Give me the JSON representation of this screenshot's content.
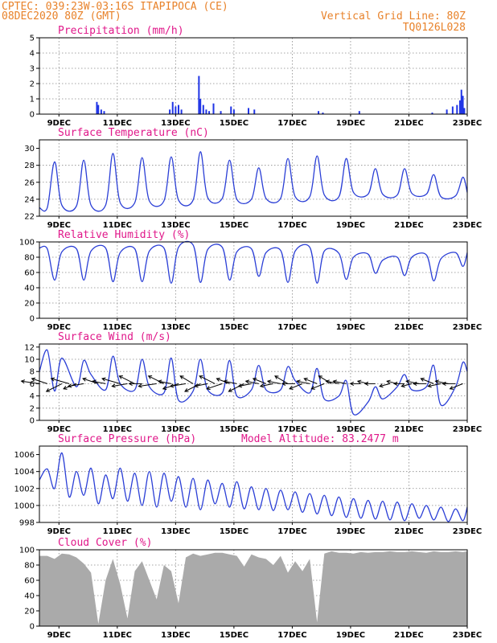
{
  "header": {
    "left_line1": "CPTEC:  039:23W-03:16S  ITAPIPOCA (CE)",
    "left_line2": "08DEC2020 80Z (GMT)",
    "right_line1": "Vertical Grid Line: 80Z",
    "right_line2": "TQ0126L028"
  },
  "x_ticks": [
    "9DEC",
    "11DEC",
    "13DEC",
    "15DEC",
    "17DEC",
    "19DEC",
    "21DEC",
    "23DEC"
  ],
  "colors": {
    "header": "#e8822a",
    "title": "#e0188a",
    "series": "#2b3fd6",
    "bars": "#1f34e6",
    "cloud": "#aaaaaa"
  },
  "panels": [
    {
      "id": "precip",
      "title": "Precipitation (mm/h)",
      "yticks": [
        "5",
        "4",
        "3",
        "2",
        "1",
        "0"
      ]
    },
    {
      "id": "temp",
      "title": "Surface Temperature (nC)",
      "yticks": [
        "30",
        "28",
        "26",
        "24",
        "22"
      ]
    },
    {
      "id": "rh",
      "title": "Relative Humidity (%)",
      "yticks": [
        "100",
        "80",
        "60",
        "40",
        "20",
        "0"
      ]
    },
    {
      "id": "wind",
      "title": "Surface Wind (m/s)",
      "yticks": [
        "12",
        "10",
        "8",
        "6",
        "4",
        "2",
        "0"
      ]
    },
    {
      "id": "pres",
      "title": "Surface Pressure (hPa)",
      "extra": "Model Altitude: 83.2477 m",
      "yticks": [
        "1006",
        "1004",
        "1002",
        "1000",
        "998"
      ]
    },
    {
      "id": "cloud",
      "title": "Cloud Cover (%)",
      "yticks": [
        "100",
        "80",
        "60",
        "40",
        "20",
        "0"
      ]
    }
  ],
  "chart_data": [
    {
      "type": "bar",
      "title": "Precipitation (mm/h)",
      "ylim": [
        0,
        5
      ],
      "xlim_days": [
        8.33,
        23.0
      ],
      "x_days": [
        10.3,
        10.35,
        10.45,
        10.55,
        12.8,
        12.9,
        13.0,
        13.1,
        13.2,
        13.8,
        13.85,
        13.95,
        14.05,
        14.15,
        14.3,
        14.55,
        14.9,
        15.0,
        15.5,
        15.7,
        17.9,
        18.05,
        19.3,
        21.8,
        22.3,
        22.5,
        22.65,
        22.75,
        22.8,
        22.85,
        22.9
      ],
      "values": [
        0.8,
        0.6,
        0.3,
        0.2,
        0.3,
        0.8,
        0.5,
        0.6,
        0.3,
        2.5,
        1.0,
        0.6,
        0.3,
        0.2,
        0.7,
        0.2,
        0.5,
        0.3,
        0.4,
        0.3,
        0.2,
        0.1,
        0.2,
        0.1,
        0.3,
        0.5,
        0.6,
        0.9,
        1.6,
        1.2,
        0.4
      ]
    },
    {
      "type": "line",
      "title": "Surface Temperature (nC)",
      "ylim": [
        22,
        31
      ],
      "x_days": [
        8.33,
        8.6,
        8.85,
        9.1,
        9.6,
        9.85,
        10.1,
        10.6,
        10.85,
        11.1,
        11.6,
        11.85,
        12.1,
        12.6,
        12.85,
        13.1,
        13.6,
        13.85,
        14.1,
        14.6,
        14.85,
        15.1,
        15.6,
        15.85,
        16.1,
        16.6,
        16.85,
        17.1,
        17.6,
        17.85,
        18.1,
        18.6,
        18.85,
        19.1,
        19.6,
        19.85,
        20.1,
        20.6,
        20.85,
        21.1,
        21.6,
        21.85,
        22.1,
        22.6,
        22.85,
        23.0
      ],
      "values": [
        23.0,
        23.0,
        28.4,
        23.3,
        23.2,
        28.6,
        23.3,
        23.3,
        29.4,
        23.6,
        23.6,
        28.9,
        23.8,
        23.8,
        29.0,
        23.9,
        23.9,
        29.6,
        24.2,
        24.1,
        28.6,
        24.0,
        24.0,
        27.7,
        24.1,
        24.1,
        28.8,
        24.3,
        24.3,
        29.1,
        24.5,
        24.3,
        28.8,
        24.8,
        24.6,
        27.6,
        24.6,
        24.5,
        27.6,
        24.7,
        24.6,
        26.9,
        24.3,
        24.4,
        26.6,
        24.8
      ]
    },
    {
      "type": "line",
      "title": "Relative Humidity (%)",
      "ylim": [
        0,
        100
      ],
      "x_days": [
        8.33,
        8.6,
        8.85,
        9.1,
        9.6,
        9.85,
        10.1,
        10.6,
        10.85,
        11.1,
        11.6,
        11.85,
        12.1,
        12.6,
        12.85,
        13.1,
        13.6,
        13.85,
        14.1,
        14.6,
        14.85,
        15.1,
        15.6,
        15.85,
        16.1,
        16.6,
        16.85,
        17.1,
        17.6,
        17.85,
        18.1,
        18.6,
        18.85,
        19.1,
        19.6,
        19.85,
        20.1,
        20.6,
        20.85,
        21.1,
        21.6,
        21.85,
        22.1,
        22.6,
        22.85,
        23.0
      ],
      "values": [
        92,
        91,
        50,
        87,
        91,
        50,
        88,
        92,
        48,
        86,
        91,
        48,
        88,
        92,
        46,
        93,
        96,
        47,
        90,
        93,
        50,
        87,
        91,
        55,
        86,
        89,
        47,
        88,
        93,
        46,
        88,
        85,
        51,
        80,
        84,
        59,
        76,
        80,
        56,
        80,
        83,
        49,
        78,
        86,
        68,
        86
      ]
    },
    {
      "type": "line",
      "title": "Surface Wind (m/s)",
      "ylim": [
        0,
        12.5
      ],
      "x_days": [
        8.33,
        8.6,
        8.85,
        9.1,
        9.6,
        9.85,
        10.1,
        10.6,
        10.85,
        11.1,
        11.6,
        11.85,
        12.1,
        12.6,
        12.85,
        13.1,
        13.6,
        13.85,
        14.1,
        14.6,
        14.85,
        15.1,
        15.6,
        15.85,
        16.1,
        16.6,
        16.85,
        17.1,
        17.6,
        17.85,
        18.1,
        18.6,
        18.85,
        19.1,
        19.6,
        19.85,
        20.1,
        20.6,
        20.85,
        21.1,
        21.6,
        21.85,
        22.1,
        22.6,
        22.85,
        23.0
      ],
      "values": [
        8.0,
        11.5,
        4.8,
        10.2,
        5.5,
        9.8,
        7.5,
        5.0,
        10.5,
        6.0,
        5.0,
        10.0,
        5.5,
        4.5,
        10.2,
        3.3,
        4.8,
        10.0,
        5.0,
        4.5,
        9.8,
        4.0,
        5.0,
        9.0,
        5.0,
        5.0,
        8.8,
        6.5,
        4.5,
        8.5,
        3.5,
        4.0,
        6.5,
        1.0,
        3.0,
        5.5,
        3.5,
        5.5,
        7.5,
        5.0,
        5.5,
        9.0,
        2.5,
        5.5,
        9.5,
        8.0
      ],
      "vectors_x_days": [
        8.33,
        8.6,
        9.1,
        9.35,
        9.6,
        9.85,
        10.35,
        10.6,
        11.1,
        11.35,
        11.6,
        11.85,
        12.35,
        12.6,
        12.85,
        13.1,
        13.35,
        13.6,
        13.85,
        14.1,
        14.35,
        14.6,
        14.85,
        15.1,
        15.35,
        15.6,
        15.85,
        16.1,
        16.35,
        16.6,
        16.85,
        17.1,
        17.35,
        17.6,
        17.85,
        18.1,
        18.35,
        18.6,
        18.85,
        19.35,
        19.6,
        19.85,
        20.35,
        20.6,
        20.85,
        21.1,
        21.35,
        21.6,
        21.85,
        22.1,
        22.35,
        22.6,
        22.85
      ],
      "vectors_u": [
        -7,
        -6,
        -6,
        -7,
        -5,
        -6,
        -6,
        -5,
        -7,
        -6,
        -6,
        -5,
        -7,
        -6,
        -5,
        -6,
        -6,
        -5,
        -6,
        -5,
        -6,
        -6,
        -5,
        -5,
        -6,
        -5,
        -5,
        -5,
        -5,
        -5,
        -5,
        -5,
        -5,
        -5,
        -5,
        -5,
        -5,
        -5,
        -5,
        -4,
        -4,
        -4,
        -4,
        -4,
        -4,
        -4,
        -5,
        -5,
        -5,
        -5,
        -5,
        -5,
        -5
      ],
      "vectors_v": [
        1,
        2,
        -3,
        2,
        -2,
        -1,
        2,
        1,
        2,
        -1,
        3,
        0,
        -1,
        3,
        1,
        -2,
        -1,
        3,
        -3,
        -1,
        3,
        -2,
        2,
        1,
        -3,
        -1,
        1,
        2,
        -1,
        1,
        3,
        0,
        -2,
        1,
        2,
        -2,
        3,
        1,
        1,
        0,
        1,
        0,
        -1,
        1,
        0,
        -1,
        1,
        0,
        2,
        -1,
        1,
        0,
        -2
      ]
    },
    {
      "type": "line",
      "title": "Surface Pressure (hPa)",
      "ylim": [
        998,
        1007
      ],
      "x_days": [
        8.33,
        8.6,
        8.85,
        9.1,
        9.35,
        9.6,
        9.85,
        10.1,
        10.35,
        10.6,
        10.85,
        11.1,
        11.35,
        11.6,
        11.85,
        12.1,
        12.35,
        12.6,
        12.85,
        13.1,
        13.35,
        13.6,
        13.85,
        14.1,
        14.35,
        14.6,
        14.85,
        15.1,
        15.35,
        15.6,
        15.85,
        16.1,
        16.35,
        16.6,
        16.85,
        17.1,
        17.35,
        17.6,
        17.85,
        18.1,
        18.35,
        18.6,
        18.85,
        19.1,
        19.35,
        19.6,
        19.85,
        20.1,
        20.35,
        20.6,
        20.85,
        21.1,
        21.35,
        21.6,
        21.85,
        22.1,
        22.35,
        22.6,
        22.85,
        23.0
      ],
      "values": [
        1003.0,
        1004.3,
        1002.0,
        1006.2,
        1001.0,
        1004.0,
        1001.2,
        1004.4,
        1000.2,
        1003.6,
        1000.8,
        1004.4,
        1000.5,
        1003.8,
        1000.0,
        1004.0,
        999.8,
        1003.8,
        1000.5,
        1003.4,
        999.8,
        1003.2,
        999.5,
        1003.0,
        1000.2,
        1002.6,
        999.8,
        1002.8,
        999.6,
        1002.2,
        999.5,
        1002.0,
        999.4,
        1001.8,
        999.5,
        1001.6,
        999.2,
        1001.4,
        999.0,
        1001.2,
        998.8,
        1001.0,
        998.6,
        1000.8,
        998.5,
        1000.6,
        998.4,
        1000.5,
        998.3,
        1000.4,
        998.2,
        1000.2,
        998.5,
        1000.0,
        998.3,
        999.8,
        998.1,
        999.6,
        998.2,
        999.8
      ]
    },
    {
      "type": "area",
      "title": "Cloud Cover (%)",
      "ylim": [
        0,
        100
      ],
      "x_days": [
        8.33,
        8.6,
        8.85,
        9.1,
        9.35,
        9.6,
        9.85,
        10.1,
        10.35,
        10.6,
        10.85,
        11.1,
        11.35,
        11.6,
        11.85,
        12.1,
        12.35,
        12.6,
        12.85,
        13.1,
        13.35,
        13.6,
        13.85,
        14.1,
        14.35,
        14.6,
        14.85,
        15.1,
        15.35,
        15.6,
        15.85,
        16.1,
        16.35,
        16.6,
        16.85,
        17.1,
        17.35,
        17.6,
        17.85,
        18.1,
        18.35,
        18.6,
        18.85,
        19.1,
        19.35,
        19.6,
        19.85,
        20.1,
        20.35,
        20.6,
        20.85,
        21.1,
        21.35,
        21.6,
        21.85,
        22.1,
        22.35,
        22.6,
        22.85,
        23.0
      ],
      "values": [
        92,
        92,
        88,
        95,
        94,
        90,
        82,
        70,
        3,
        60,
        88,
        55,
        10,
        72,
        85,
        60,
        35,
        80,
        72,
        30,
        90,
        95,
        92,
        94,
        96,
        96,
        94,
        92,
        78,
        94,
        90,
        88,
        80,
        92,
        70,
        85,
        72,
        88,
        5,
        95,
        98,
        96,
        96,
        95,
        97,
        96,
        97,
        97,
        98,
        97,
        97,
        98,
        97,
        96,
        98,
        97,
        97,
        98,
        97,
        98
      ]
    }
  ]
}
